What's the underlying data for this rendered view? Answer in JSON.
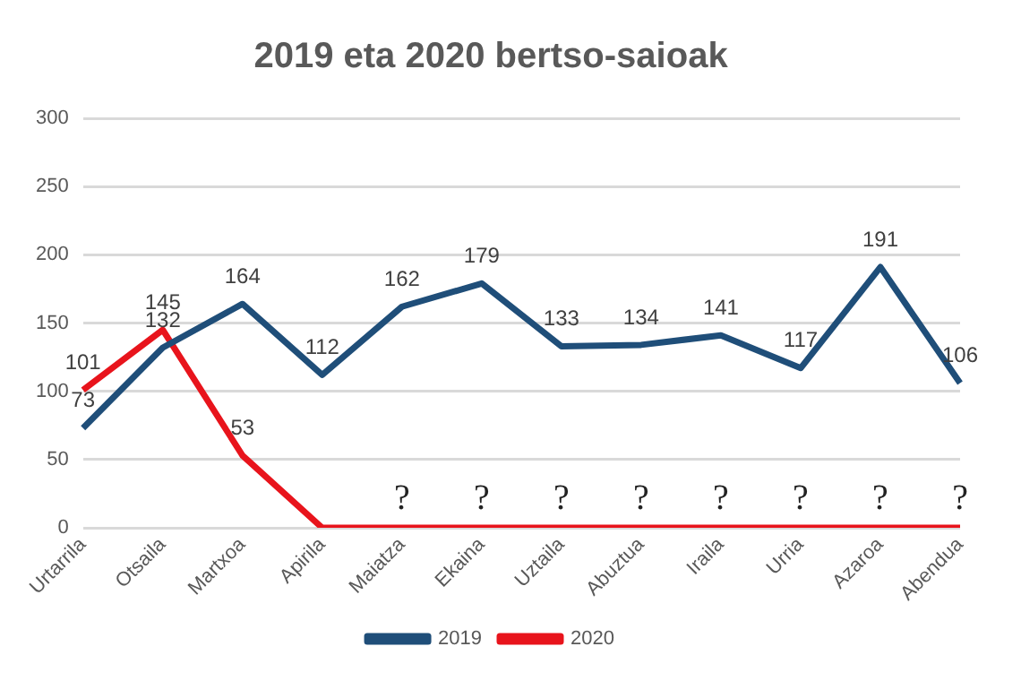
{
  "chart_data": {
    "type": "line",
    "title": "2019 eta 2020 bertso-saioak",
    "categories": [
      "Urtarrila",
      "Otsaila",
      "Martxoa",
      "Apirila",
      "Maiatza",
      "Ekaina",
      "Uztaila",
      "Abuztua",
      "Iraila",
      "Urria",
      "Azaroa",
      "Abendua"
    ],
    "series": [
      {
        "name": "2019",
        "color": "#1f4e79",
        "values": [
          73,
          132,
          164,
          112,
          162,
          179,
          133,
          134,
          141,
          117,
          191,
          106
        ],
        "value_labels": [
          "73",
          "132",
          "164",
          "112",
          "162",
          "179",
          "133",
          "134",
          "141",
          "117",
          "191",
          "106"
        ]
      },
      {
        "name": "2020",
        "color": "#e8141c",
        "values": [
          101,
          145,
          53,
          0,
          0,
          0,
          0,
          0,
          0,
          0,
          0,
          0
        ],
        "value_labels": [
          "101",
          "145",
          "53",
          null,
          "?",
          "?",
          "?",
          "?",
          "?",
          "?",
          "?",
          "?"
        ]
      }
    ],
    "ylim": [
      0,
      300
    ],
    "yticks": [
      0,
      50,
      100,
      150,
      200,
      250,
      300
    ],
    "grid": "y",
    "legend": "bottom",
    "marker": "none",
    "line_style": "solid"
  }
}
